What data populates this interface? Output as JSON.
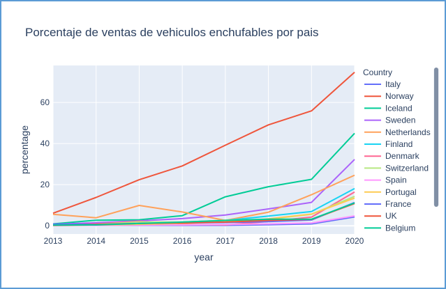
{
  "chart_data": {
    "type": "line",
    "title": "Porcentaje de ventas de vehiculos enchufables por pais",
    "xlabel": "year",
    "ylabel": "percentage",
    "x": [
      2013,
      2014,
      2015,
      2016,
      2017,
      2018,
      2019,
      2020
    ],
    "xlim": [
      2013,
      2020
    ],
    "ylim": [
      -4,
      78
    ],
    "yticks": [
      0,
      20,
      40,
      60
    ],
    "grid": true,
    "legend_title": "Country",
    "legend_position": "right",
    "series": [
      {
        "name": "Italy",
        "color": "#636efa",
        "values": [
          0.1,
          0.2,
          0.2,
          0.2,
          0.2,
          0.5,
          0.9,
          4.3
        ]
      },
      {
        "name": "Norway",
        "color": "#EF553B",
        "values": [
          6.1,
          13.8,
          22.4,
          29.1,
          39.2,
          49.1,
          55.9,
          74.7
        ]
      },
      {
        "name": "Iceland",
        "color": "#00cc96",
        "values": [
          0.9,
          2.7,
          2.9,
          4.9,
          14.1,
          19.0,
          22.6,
          45.0
        ]
      },
      {
        "name": "Sweden",
        "color": "#ab63fa",
        "values": [
          0.7,
          1.5,
          2.4,
          3.5,
          5.2,
          8.2,
          11.4,
          32.3
        ]
      },
      {
        "name": "Netherlands",
        "color": "#FFA15A",
        "values": [
          5.6,
          3.9,
          9.9,
          6.7,
          2.6,
          6.6,
          15.1,
          24.6
        ]
      },
      {
        "name": "Finland",
        "color": "#19d3f3",
        "values": [
          0.4,
          0.5,
          1.0,
          1.8,
          2.6,
          4.7,
          6.9,
          18.1
        ]
      },
      {
        "name": "Denmark",
        "color": "#FF6692",
        "values": [
          0.3,
          0.9,
          2.2,
          0.6,
          0.4,
          2.1,
          4.2,
          16.4
        ]
      },
      {
        "name": "Switzerland",
        "color": "#B6E880",
        "values": [
          0.5,
          0.7,
          1.9,
          1.8,
          2.7,
          3.2,
          5.6,
          14.3
        ]
      },
      {
        "name": "Spain",
        "color": "#FF97FF",
        "values": [
          0.1,
          0.2,
          0.3,
          0.4,
          0.6,
          0.9,
          1.4,
          4.8
        ]
      },
      {
        "name": "Portugal",
        "color": "#FECB52",
        "values": [
          0.2,
          0.4,
          0.7,
          1.2,
          1.9,
          3.4,
          5.7,
          13.5
        ]
      },
      {
        "name": "France",
        "color": "#636efa",
        "values": [
          0.8,
          0.7,
          1.2,
          1.4,
          1.6,
          2.0,
          2.8,
          11.3
        ]
      },
      {
        "name": "UK",
        "color": "#EF553B",
        "values": [
          0.2,
          0.6,
          1.1,
          1.4,
          1.8,
          2.6,
          3.1,
          10.8
        ]
      },
      {
        "name": "Belgium",
        "color": "#00cc96",
        "values": [
          0.3,
          0.4,
          1.1,
          1.8,
          2.6,
          3.2,
          3.2,
          11.1
        ]
      }
    ]
  }
}
